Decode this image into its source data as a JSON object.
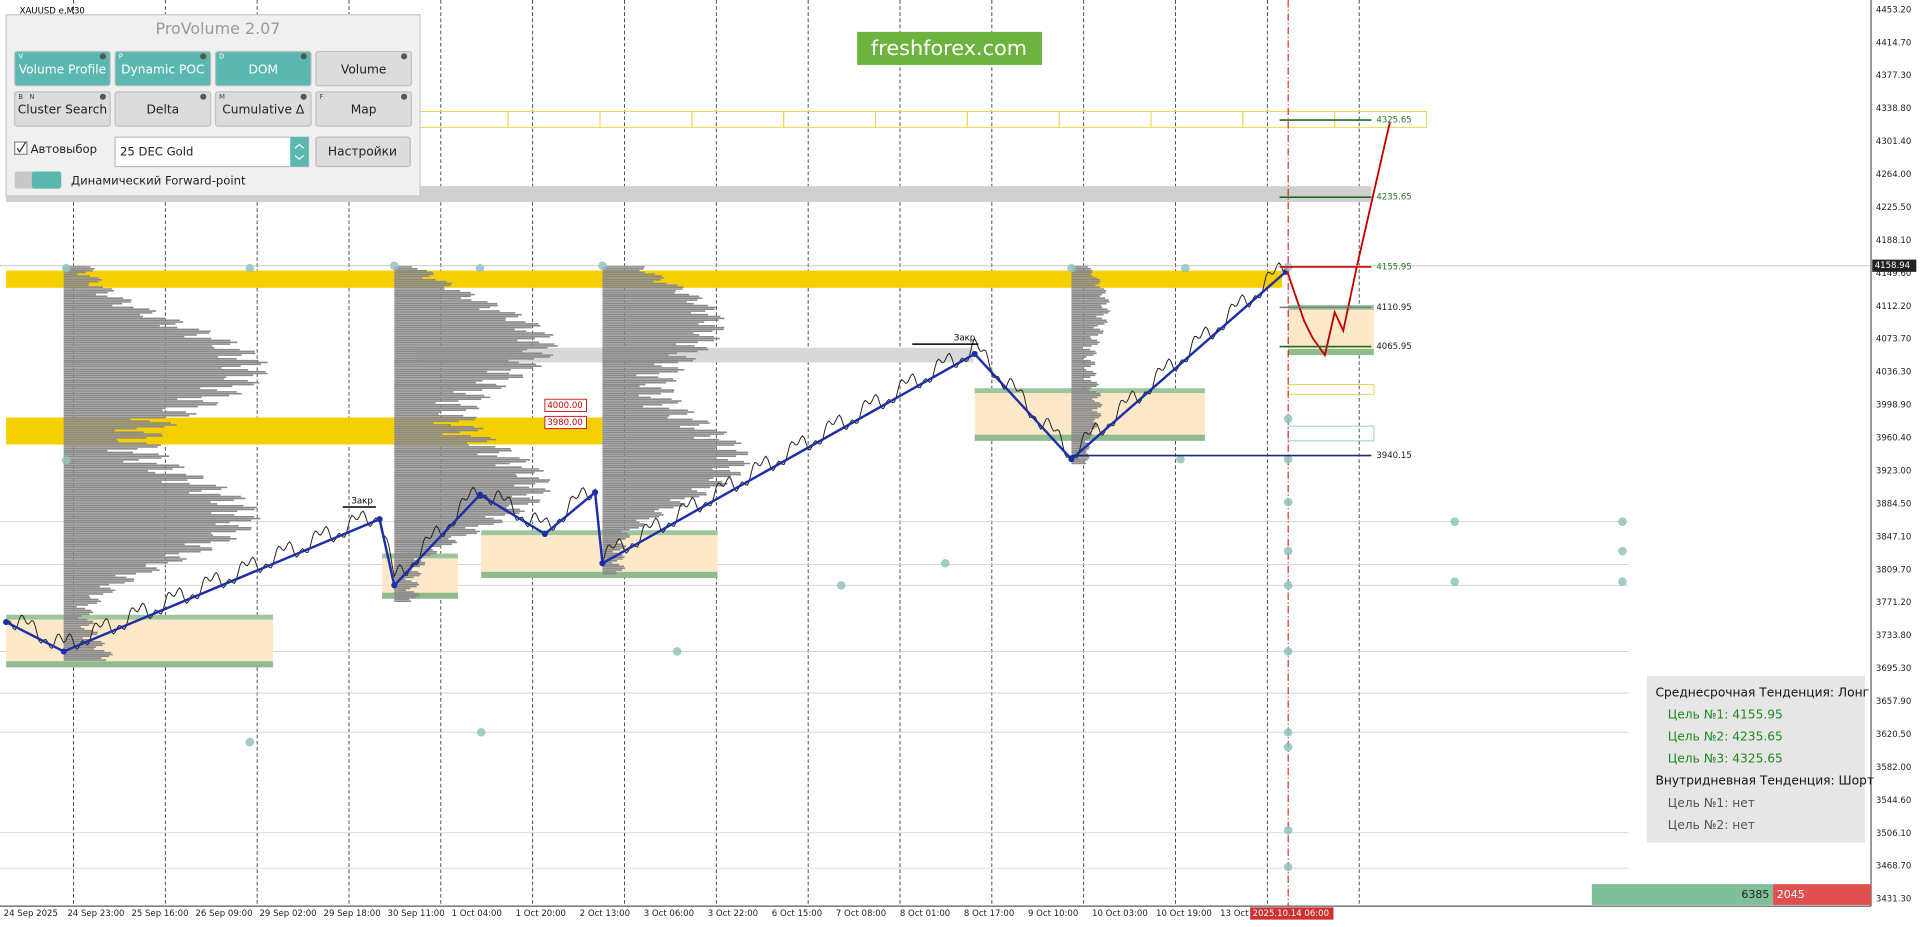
{
  "header": {
    "symbol": "XAUUSD e,M30",
    "watermark": "freshforex.com"
  },
  "panel": {
    "title": "ProVolume 2.07",
    "buttons": [
      {
        "label": "Volume Profile",
        "hotkeys": [
          "V"
        ],
        "active": true
      },
      {
        "label": "Dynamic POC",
        "hotkeys": [
          "P"
        ],
        "active": true
      },
      {
        "label": "DOM",
        "hotkeys": [
          "D"
        ],
        "active": true
      },
      {
        "label": "Volume",
        "active": false
      },
      {
        "label": "Cluster Search",
        "hotkeys": [
          "B",
          "N"
        ],
        "active": false
      },
      {
        "label": "Delta",
        "active": false
      },
      {
        "label": "Cumulative Δ",
        "hotkeys": [
          "M"
        ],
        "active": false
      },
      {
        "label": "Map",
        "hotkeys": [
          "F"
        ],
        "active": false
      }
    ],
    "autoselect": "Автовыбор",
    "instrument": "25 DEC Gold",
    "settings": "Настройки",
    "forward_point": "Динамический Forward-point"
  },
  "price_axis": [
    "4453.20",
    "4414.70",
    "4377.30",
    "4338.80",
    "4301.40",
    "4264.00",
    "4225.50",
    "4188.10",
    "4149.60",
    "4112.20",
    "4073.70",
    "4036.30",
    "3998.90",
    "3960.40",
    "3923.00",
    "3884.50",
    "3847.10",
    "3809.70",
    "3771.20",
    "3733.80",
    "3695.30",
    "3657.90",
    "3620.50",
    "3582.00",
    "3544.60",
    "3506.10",
    "3468.70",
    "3431.30"
  ],
  "current_price": "4158.94",
  "time_axis": [
    "24 Sep 2025",
    "24 Sep 23:00",
    "25 Sep 16:00",
    "26 Sep 09:00",
    "29 Sep 02:00",
    "29 Sep 18:00",
    "30 Sep 11:00",
    "1 Oct 04:00",
    "1 Oct 20:00",
    "2 Oct 13:00",
    "3 Oct 06:00",
    "3 Oct 22:00",
    "6 Oct 15:00",
    "7 Oct 08:00",
    "8 Oct 01:00",
    "8 Oct 17:00",
    "9 Oct 10:00",
    "10 Oct 03:00",
    "10 Oct 19:00",
    "13 Oct"
  ],
  "current_time": "2025.10.14 06:00",
  "levels": [
    "4325.65",
    "4235.65",
    "4155.95",
    "4110.95",
    "4065.95",
    "3940.15"
  ],
  "price_marks": [
    "4000.00",
    "3980.00"
  ],
  "close_labels": [
    "Закр",
    "Закр"
  ],
  "trend_box": [
    {
      "title": "Среднесрочная Тенденция: Лонг",
      "color": "#1f8a1f",
      "targets": [
        "Цель №1: 4155.95",
        "Цель №2: 4235.65",
        "Цель №3: 4325.65"
      ]
    },
    {
      "title": "Внутридневная Тенденция: Шорт",
      "color": "#555555",
      "targets": [
        "Цель №1: нет",
        "Цель №2: нет"
      ]
    }
  ],
  "order_flow": {
    "buy": "6385",
    "sell": "2045"
  }
}
